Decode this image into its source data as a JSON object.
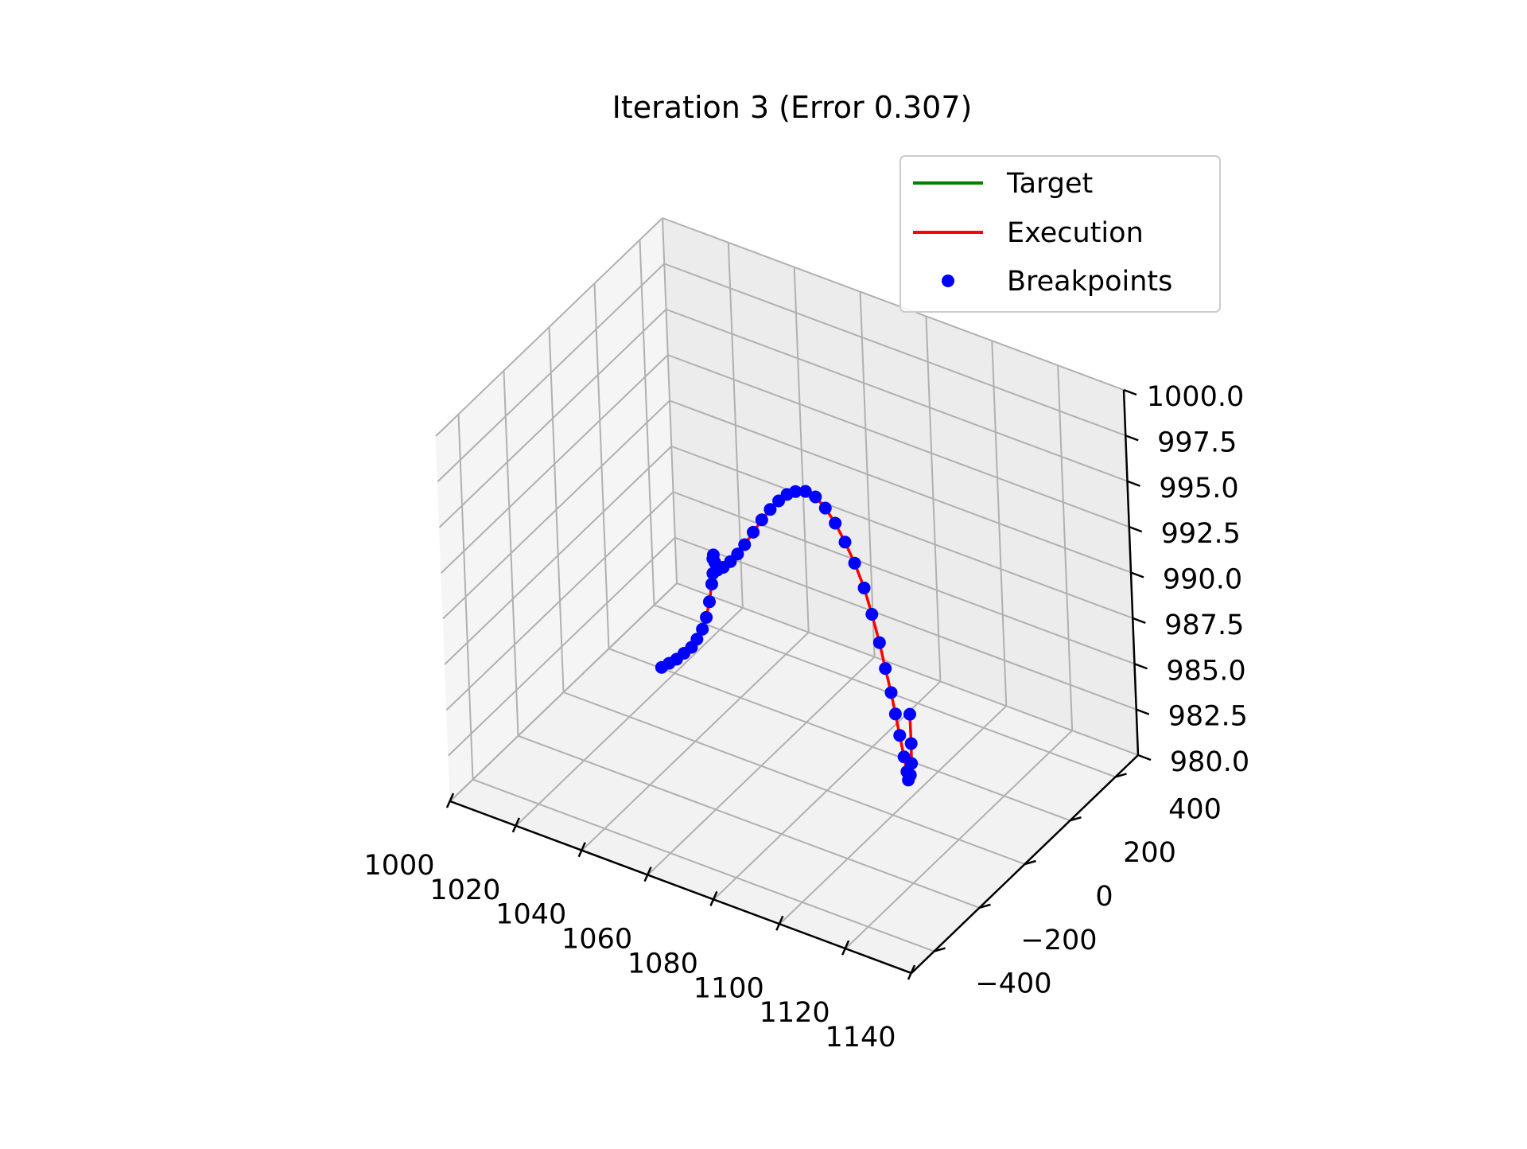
{
  "chart_data": {
    "type": "line",
    "projection": "3d",
    "title": "Iteration 3 (Error 0.307)",
    "xlabel": "",
    "ylabel": "",
    "zlabel": "",
    "xlim": [
      1000,
      1140
    ],
    "ylim": [
      -500,
      500
    ],
    "zlim": [
      980,
      1000
    ],
    "xticks": [
      "1000",
      "1020",
      "1040",
      "1060",
      "1080",
      "1100",
      "1120",
      "1140"
    ],
    "yticks": [
      "−400",
      "−200",
      "0",
      "200",
      "400"
    ],
    "zticks": [
      "980.0",
      "982.5",
      "985.0",
      "987.5",
      "990.0",
      "992.5",
      "995.0",
      "997.5",
      "1000.0"
    ],
    "grid": true,
    "legend": {
      "placement": "top-right",
      "entries": [
        {
          "label": "Target",
          "color": "#008000",
          "marker": "line"
        },
        {
          "label": "Execution",
          "color": "#ff0000",
          "marker": "line"
        },
        {
          "label": "Breakpoints",
          "color": "#0000ff",
          "marker": "dot"
        }
      ]
    },
    "series": [
      {
        "name": "Execution",
        "color": "#ff0000",
        "points": [
          [
            1024.0,
            90,
            981.9
          ],
          [
            1026.0,
            95,
            982.2
          ],
          [
            1028.0,
            100,
            982.5
          ],
          [
            1030.0,
            105,
            982.9
          ],
          [
            1032.0,
            110,
            983.3
          ],
          [
            1033.5,
            114,
            983.8
          ],
          [
            1035.0,
            118,
            984.4
          ],
          [
            1036.2,
            120,
            985.1
          ],
          [
            1037.2,
            122,
            986.0
          ],
          [
            1038.0,
            124,
            987.0
          ],
          [
            1038.4,
            125,
            987.6
          ],
          [
            1038.5,
            126,
            988.4
          ],
          [
            1038.6,
            127,
            988.6
          ],
          [
            1038.9,
            128,
            988.2
          ],
          [
            1039.5,
            130,
            987.8
          ],
          [
            1041.0,
            134,
            988.0
          ],
          [
            1043.0,
            138,
            988.4
          ],
          [
            1045.0,
            142,
            988.9
          ],
          [
            1047.0,
            146,
            989.5
          ],
          [
            1049.5,
            150,
            990.3
          ],
          [
            1052.0,
            154,
            991.1
          ],
          [
            1054.5,
            157,
            991.8
          ],
          [
            1057.0,
            160,
            992.4
          ],
          [
            1059.5,
            162,
            992.9
          ],
          [
            1062.0,
            164,
            993.2
          ],
          [
            1065.0,
            165,
            993.4
          ],
          [
            1068.0,
            165,
            993.3
          ],
          [
            1071.0,
            164,
            992.9
          ],
          [
            1074.0,
            162,
            992.3
          ],
          [
            1077.0,
            159,
            991.5
          ],
          [
            1080.0,
            155,
            990.6
          ],
          [
            1083.0,
            150,
            989.5
          ],
          [
            1085.5,
            144,
            988.3
          ],
          [
            1088.0,
            137,
            987.0
          ],
          [
            1090.0,
            130,
            985.8
          ],
          [
            1092.0,
            123,
            984.7
          ],
          [
            1093.5,
            117,
            983.7
          ],
          [
            1095.0,
            111,
            982.7
          ],
          [
            1096.5,
            105,
            981.7
          ],
          [
            1097.5,
            101,
            981.0
          ],
          [
            1098.0,
            99,
            980.6
          ],
          [
            1098.6,
            100,
            980.9
          ],
          [
            1098.8,
            104,
            981.5
          ],
          [
            1098.5,
            110,
            982.5
          ],
          [
            1098.0,
            116,
            984.0
          ]
        ]
      },
      {
        "name": "Breakpoints",
        "color": "#0000ff",
        "points": [
          [
            1024.0,
            90,
            981.9
          ],
          [
            1026.0,
            95,
            982.2
          ],
          [
            1028.0,
            100,
            982.5
          ],
          [
            1030.0,
            105,
            982.9
          ],
          [
            1032.0,
            110,
            983.3
          ],
          [
            1033.5,
            114,
            983.8
          ],
          [
            1035.0,
            118,
            984.4
          ],
          [
            1036.2,
            120,
            985.1
          ],
          [
            1037.2,
            122,
            986.0
          ],
          [
            1038.0,
            124,
            987.0
          ],
          [
            1038.4,
            125,
            987.6
          ],
          [
            1038.5,
            126,
            988.4
          ],
          [
            1038.6,
            127,
            988.6
          ],
          [
            1038.9,
            128,
            988.2
          ],
          [
            1039.5,
            130,
            987.8
          ],
          [
            1041.0,
            134,
            988.0
          ],
          [
            1043.0,
            138,
            988.4
          ],
          [
            1045.0,
            142,
            988.9
          ],
          [
            1047.0,
            146,
            989.5
          ],
          [
            1049.5,
            150,
            990.3
          ],
          [
            1052.0,
            154,
            991.1
          ],
          [
            1054.5,
            157,
            991.8
          ],
          [
            1057.0,
            160,
            992.4
          ],
          [
            1059.5,
            162,
            992.9
          ],
          [
            1062.0,
            164,
            993.2
          ],
          [
            1065.0,
            165,
            993.4
          ],
          [
            1068.0,
            165,
            993.3
          ],
          [
            1071.0,
            164,
            992.9
          ],
          [
            1074.0,
            162,
            992.3
          ],
          [
            1077.0,
            159,
            991.5
          ],
          [
            1080.0,
            155,
            990.6
          ],
          [
            1083.0,
            150,
            989.5
          ],
          [
            1085.5,
            144,
            988.3
          ],
          [
            1088.0,
            137,
            987.0
          ],
          [
            1090.0,
            130,
            985.8
          ],
          [
            1092.0,
            123,
            984.7
          ],
          [
            1093.5,
            117,
            983.7
          ],
          [
            1095.0,
            111,
            982.7
          ],
          [
            1096.5,
            105,
            981.7
          ],
          [
            1097.5,
            101,
            981.0
          ],
          [
            1098.0,
            99,
            980.6
          ],
          [
            1098.6,
            100,
            980.9
          ],
          [
            1098.8,
            104,
            981.5
          ],
          [
            1098.5,
            110,
            982.5
          ],
          [
            1098.0,
            116,
            984.0
          ]
        ]
      }
    ]
  }
}
